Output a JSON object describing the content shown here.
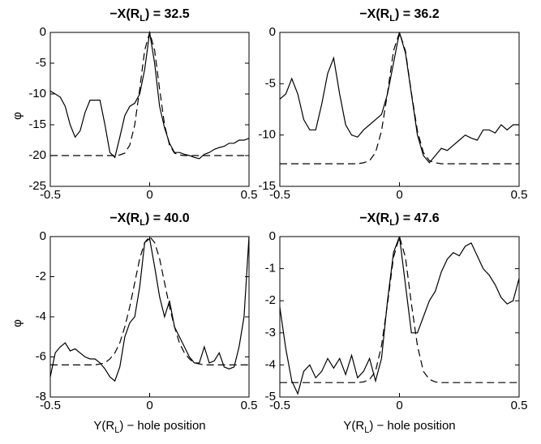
{
  "chart_data": [
    {
      "type": "line",
      "title": [
        "−X(R",
        "L",
        ") = 32.5"
      ],
      "ylabel": "φ",
      "x": [
        -0.5,
        -0.475,
        -0.45,
        -0.425,
        -0.4,
        -0.375,
        -0.35,
        -0.325,
        -0.3,
        -0.275,
        -0.25,
        -0.225,
        -0.2,
        -0.175,
        -0.15,
        -0.125,
        -0.1,
        -0.075,
        -0.05,
        -0.025,
        0,
        0.025,
        0.05,
        0.075,
        0.1,
        0.125,
        0.15,
        0.175,
        0.2,
        0.225,
        0.25,
        0.275,
        0.3,
        0.325,
        0.35,
        0.375,
        0.4,
        0.425,
        0.45,
        0.475,
        0.5
      ],
      "series": [
        {
          "color": "#000000",
          "style": "solid",
          "values": [
            -9.5,
            -10,
            -10.5,
            -12,
            -15,
            -17,
            -16,
            -13,
            -11,
            -11,
            -11,
            -15,
            -19.5,
            -20.3,
            -17,
            -13.5,
            -12,
            -11.5,
            -10,
            -6,
            0,
            -5,
            -12,
            -15.5,
            -18,
            -19.5,
            -19.5,
            -19.8,
            -20,
            -20.3,
            -20.5,
            -19.8,
            -19.5,
            -19,
            -18.7,
            -18.5,
            -18,
            -18,
            -17.5,
            -17.5,
            -17.2
          ]
        },
        {
          "color": "#000000",
          "style": "dashed",
          "values": [
            -20,
            -20,
            -20,
            -20,
            -20,
            -20,
            -20,
            -20,
            -20,
            -20,
            -20,
            -20,
            -20,
            -20,
            -19.9,
            -19.6,
            -18.3,
            -15,
            -9.2,
            -2.9,
            0,
            -2.9,
            -9.2,
            -15,
            -18.3,
            -19.6,
            -19.9,
            -20,
            -20,
            -20,
            -20,
            -20,
            -20,
            -20,
            -20,
            -20,
            -20,
            -20,
            -20,
            -20,
            -20
          ]
        }
      ],
      "xlim": [
        -0.5,
        0.5
      ],
      "xticks": [
        -0.5,
        0,
        0.5
      ],
      "ylim": [
        -25,
        0
      ],
      "yticks": [
        -25,
        -20,
        -15,
        -10,
        -5,
        0
      ]
    },
    {
      "type": "line",
      "title": [
        "−X(R",
        "L",
        ") = 36.2"
      ],
      "x": [
        -0.5,
        -0.475,
        -0.45,
        -0.425,
        -0.4,
        -0.375,
        -0.35,
        -0.325,
        -0.3,
        -0.275,
        -0.25,
        -0.225,
        -0.2,
        -0.175,
        -0.15,
        -0.125,
        -0.1,
        -0.075,
        -0.05,
        -0.025,
        0,
        0.025,
        0.05,
        0.075,
        0.1,
        0.125,
        0.15,
        0.175,
        0.2,
        0.225,
        0.25,
        0.275,
        0.3,
        0.325,
        0.35,
        0.375,
        0.4,
        0.425,
        0.45,
        0.475,
        0.5
      ],
      "series": [
        {
          "color": "#000000",
          "style": "solid",
          "values": [
            -6.5,
            -6,
            -4.5,
            -6,
            -8.5,
            -9.5,
            -9.5,
            -7,
            -4,
            -2.5,
            -6,
            -9,
            -10,
            -10.2,
            -9.5,
            -9,
            -8.5,
            -8,
            -6,
            -3,
            0,
            -2,
            -6,
            -10,
            -12,
            -12.7,
            -12,
            -11.3,
            -11.5,
            -11,
            -10.5,
            -10,
            -10.3,
            -10.5,
            -9.5,
            -9.5,
            -9.8,
            -9,
            -9.5,
            -9,
            -9
          ]
        },
        {
          "color": "#000000",
          "style": "dashed",
          "values": [
            -12.8,
            -12.8,
            -12.8,
            -12.8,
            -12.8,
            -12.8,
            -12.8,
            -12.8,
            -12.8,
            -12.8,
            -12.8,
            -12.8,
            -12.8,
            -12.8,
            -12.7,
            -12.5,
            -11.7,
            -9.6,
            -5.9,
            -1.8,
            0,
            -1.8,
            -5.9,
            -9.6,
            -11.7,
            -12.5,
            -12.7,
            -12.8,
            -12.8,
            -12.8,
            -12.8,
            -12.8,
            -12.8,
            -12.8,
            -12.8,
            -12.8,
            -12.8,
            -12.8,
            -12.8,
            -12.8,
            -12.8
          ]
        }
      ],
      "xlim": [
        -0.5,
        0.5
      ],
      "xticks": [
        -0.5,
        0,
        0.5
      ],
      "ylim": [
        -15,
        0
      ],
      "yticks": [
        -15,
        -10,
        -5,
        0
      ]
    },
    {
      "type": "line",
      "title": [
        "−X(R",
        "L",
        ") = 40.0"
      ],
      "ylabel": "φ",
      "xlabel": [
        "Y(R",
        "L",
        ") − hole position"
      ],
      "x": [
        -0.5,
        -0.475,
        -0.45,
        -0.425,
        -0.4,
        -0.375,
        -0.35,
        -0.325,
        -0.3,
        -0.275,
        -0.25,
        -0.225,
        -0.2,
        -0.175,
        -0.15,
        -0.125,
        -0.1,
        -0.075,
        -0.05,
        -0.025,
        0,
        0.025,
        0.05,
        0.075,
        0.1,
        0.125,
        0.15,
        0.175,
        0.2,
        0.225,
        0.25,
        0.275,
        0.3,
        0.325,
        0.35,
        0.375,
        0.4,
        0.425,
        0.45,
        0.475,
        0.5
      ],
      "series": [
        {
          "color": "#000000",
          "style": "solid",
          "values": [
            -7,
            -5.8,
            -5.5,
            -5.3,
            -5.7,
            -5.6,
            -5.8,
            -6,
            -6.1,
            -6.1,
            -6.3,
            -6.6,
            -7,
            -7.2,
            -6.5,
            -5,
            -4.3,
            -4,
            -2.5,
            -0.3,
            -0.1,
            -1.5,
            -3,
            -4,
            -3.2,
            -4.5,
            -5,
            -5.5,
            -6,
            -6.3,
            -6.3,
            -5.5,
            -6.3,
            -6.2,
            -5.8,
            -6.5,
            -6.6,
            -6.5,
            -5.5,
            -4,
            0
          ]
        },
        {
          "color": "#000000",
          "style": "dashed",
          "values": [
            -6.4,
            -6.4,
            -6.4,
            -6.4,
            -6.4,
            -6.4,
            -6.4,
            -6.4,
            -6.4,
            -6.4,
            -6.35,
            -6.3,
            -6.1,
            -5.8,
            -5.3,
            -4.5,
            -3.5,
            -2.3,
            -1.1,
            -0.3,
            0,
            -0.3,
            -1.1,
            -2.3,
            -3.5,
            -4.5,
            -5.3,
            -5.8,
            -6.1,
            -6.3,
            -6.35,
            -6.4,
            -6.4,
            -6.4,
            -6.4,
            -6.4,
            -6.4,
            -6.4,
            -6.4,
            -6.4,
            -6.4
          ]
        }
      ],
      "xlim": [
        -0.5,
        0.5
      ],
      "xticks": [
        -0.5,
        0,
        0.5
      ],
      "ylim": [
        -8,
        0
      ],
      "yticks": [
        -8,
        -6,
        -4,
        -2,
        0
      ]
    },
    {
      "type": "line",
      "title": [
        "−X(R",
        "L",
        ") = 47.6"
      ],
      "xlabel": [
        "Y(R",
        "L",
        ") − hole position"
      ],
      "x": [
        -0.5,
        -0.475,
        -0.45,
        -0.425,
        -0.4,
        -0.375,
        -0.35,
        -0.325,
        -0.3,
        -0.275,
        -0.25,
        -0.225,
        -0.2,
        -0.175,
        -0.15,
        -0.125,
        -0.1,
        -0.075,
        -0.05,
        -0.025,
        0,
        0.025,
        0.05,
        0.075,
        0.1,
        0.125,
        0.15,
        0.175,
        0.2,
        0.225,
        0.25,
        0.275,
        0.3,
        0.325,
        0.35,
        0.375,
        0.4,
        0.425,
        0.45,
        0.475,
        0.5
      ],
      "series": [
        {
          "color": "#000000",
          "style": "solid",
          "values": [
            -2.2,
            -3.5,
            -4.5,
            -4.9,
            -4.2,
            -4,
            -4.4,
            -4.2,
            -3.8,
            -4.1,
            -3.8,
            -4.3,
            -3.7,
            -4.4,
            -4.2,
            -3.8,
            -4.5,
            -3.8,
            -2,
            -0.5,
            0,
            -1.5,
            -3,
            -3,
            -2.5,
            -2,
            -1.7,
            -1.1,
            -0.7,
            -0.5,
            -0.6,
            -0.3,
            -0.2,
            -0.6,
            -1,
            -1.2,
            -1.5,
            -1.9,
            -2.1,
            -2,
            -1.3
          ]
        },
        {
          "color": "#000000",
          "style": "dashed",
          "values": [
            -4.55,
            -4.55,
            -4.55,
            -4.55,
            -4.55,
            -4.55,
            -4.55,
            -4.55,
            -4.55,
            -4.55,
            -4.55,
            -4.55,
            -4.55,
            -4.55,
            -4.53,
            -4.45,
            -4.2,
            -3.4,
            -2.1,
            -0.65,
            0,
            -0.65,
            -2.1,
            -3.4,
            -4.2,
            -4.45,
            -4.53,
            -4.55,
            -4.55,
            -4.55,
            -4.55,
            -4.55,
            -4.55,
            -4.55,
            -4.55,
            -4.55,
            -4.55,
            -4.55,
            -4.55,
            -4.55,
            -4.55
          ]
        }
      ],
      "xlim": [
        -0.5,
        0.5
      ],
      "xticks": [
        -0.5,
        0,
        0.5
      ],
      "ylim": [
        -5,
        0
      ],
      "yticks": [
        -5,
        -4,
        -3,
        -2,
        -1,
        0
      ]
    }
  ]
}
